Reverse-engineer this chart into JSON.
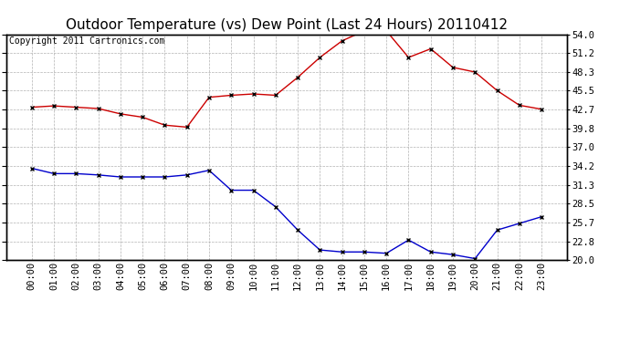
{
  "title": "Outdoor Temperature (vs) Dew Point (Last 24 Hours) 20110412",
  "copyright": "Copyright 2011 Cartronics.com",
  "x_labels": [
    "00:00",
    "01:00",
    "02:00",
    "03:00",
    "04:00",
    "05:00",
    "06:00",
    "07:00",
    "08:00",
    "09:00",
    "10:00",
    "11:00",
    "12:00",
    "13:00",
    "14:00",
    "15:00",
    "16:00",
    "17:00",
    "18:00",
    "19:00",
    "20:00",
    "21:00",
    "22:00",
    "23:00"
  ],
  "temp_data": [
    43.0,
    43.2,
    43.0,
    42.8,
    42.0,
    41.5,
    40.3,
    40.0,
    44.5,
    44.8,
    45.0,
    44.8,
    47.5,
    50.5,
    53.0,
    54.5,
    54.5,
    50.5,
    51.8,
    49.0,
    48.3,
    45.5,
    43.3,
    42.7
  ],
  "dew_data": [
    33.8,
    33.0,
    33.0,
    32.8,
    32.5,
    32.5,
    32.5,
    32.8,
    33.5,
    30.5,
    30.5,
    28.0,
    24.5,
    21.5,
    21.2,
    21.2,
    21.0,
    23.0,
    21.2,
    20.8,
    20.2,
    24.5,
    25.5,
    26.5
  ],
  "temp_color": "#cc0000",
  "dew_color": "#0000cc",
  "bg_color": "#ffffff",
  "plot_bg_color": "#ffffff",
  "grid_color": "#aaaaaa",
  "ylim": [
    20.0,
    54.0
  ],
  "yticks_right": [
    20.0,
    22.8,
    25.7,
    28.5,
    31.3,
    34.2,
    37.0,
    39.8,
    42.7,
    45.5,
    48.3,
    51.2,
    54.0
  ],
  "title_fontsize": 11,
  "copyright_fontsize": 7,
  "tick_fontsize": 7.5
}
